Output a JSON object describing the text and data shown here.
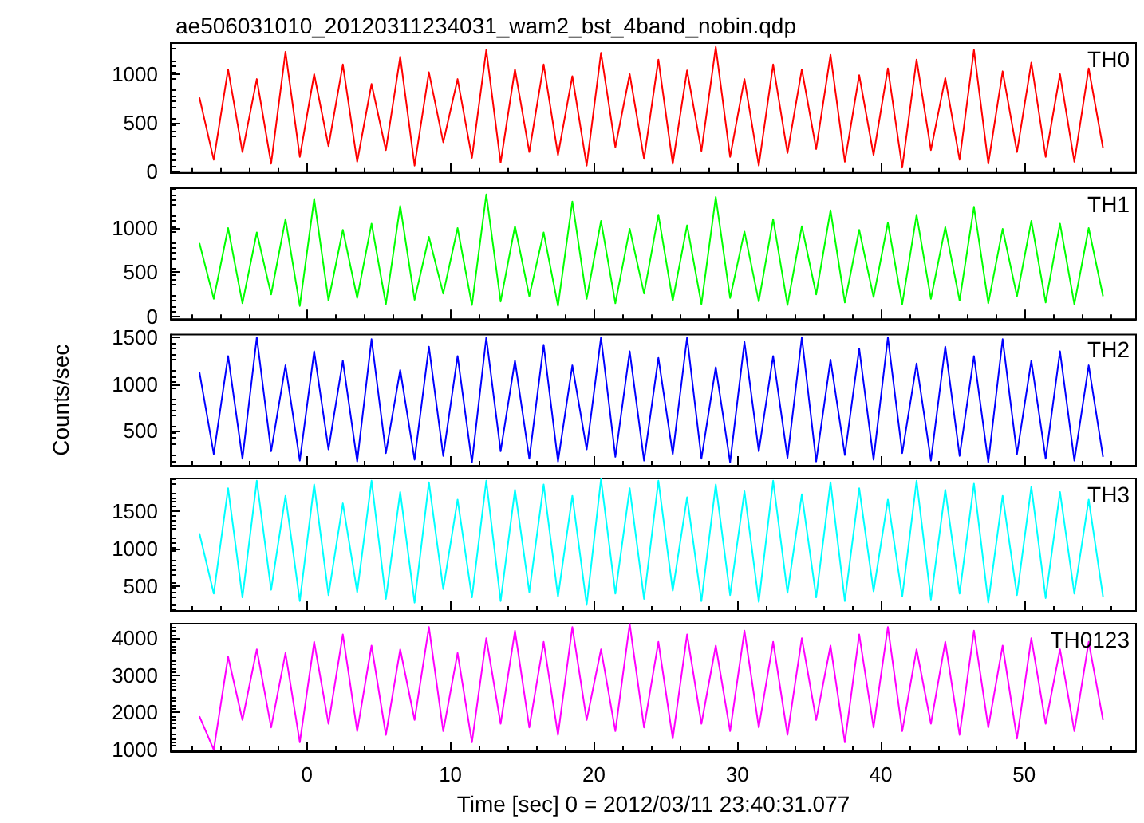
{
  "chart_data": [
    {
      "type": "line",
      "title": "ae506031010_20120311234031_wam2_bst_4band_nobin.qdp",
      "annotations": [
        "TH0"
      ],
      "marker": "none",
      "grid": false,
      "tick_labels": "y",
      "x": [
        -7.5,
        -6.5,
        -5.5,
        -4.5,
        -3.5,
        -2.5,
        -1.5,
        -0.5,
        0.5,
        1.5,
        2.5,
        3.5,
        4.5,
        5.5,
        6.5,
        7.5,
        8.5,
        9.5,
        10.5,
        11.5,
        12.5,
        13.5,
        14.5,
        15.5,
        16.5,
        17.5,
        18.5,
        19.5,
        20.5,
        21.5,
        22.5,
        23.5,
        24.5,
        25.5,
        26.5,
        27.5,
        28.5,
        29.5,
        30.5,
        31.5,
        32.5,
        33.5,
        34.5,
        35.5,
        36.5,
        37.5,
        38.5,
        39.5,
        40.5,
        41.5,
        42.5,
        43.5,
        44.5,
        45.5,
        46.5,
        47.5,
        48.5,
        49.5,
        50.5,
        51.5,
        52.5,
        53.5,
        54.5,
        55.5
      ],
      "series": [
        {
          "color": "#ff0000",
          "values": [
            760,
            120,
            1050,
            200,
            950,
            80,
            1230,
            150,
            1000,
            260,
            1100,
            100,
            900,
            220,
            1180,
            60,
            1020,
            300,
            950,
            140,
            1250,
            90,
            1050,
            200,
            1100,
            170,
            980,
            60,
            1220,
            250,
            1000,
            130,
            1150,
            80,
            1040,
            210,
            1280,
            150,
            950,
            60,
            1100,
            190,
            1050,
            230,
            1200,
            100,
            990,
            170,
            1060,
            40,
            1150,
            220,
            960,
            120,
            1250,
            80,
            1030,
            200,
            1120,
            150,
            1000,
            100,
            1060,
            240
          ]
        }
      ],
      "xlim": [
        -9.5,
        57.8
      ],
      "xticks": [
        0,
        10,
        20,
        30,
        40,
        50
      ],
      "ylim": [
        -15,
        1320
      ],
      "yticks": [
        0,
        500,
        1000
      ]
    },
    {
      "type": "line",
      "annotations": [
        "TH1"
      ],
      "marker": "none",
      "grid": false,
      "tick_labels": "y",
      "x": [
        -7.5,
        -6.5,
        -5.5,
        -4.5,
        -3.5,
        -2.5,
        -1.5,
        -0.5,
        0.5,
        1.5,
        2.5,
        3.5,
        4.5,
        5.5,
        6.5,
        7.5,
        8.5,
        9.5,
        10.5,
        11.5,
        12.5,
        13.5,
        14.5,
        15.5,
        16.5,
        17.5,
        18.5,
        19.5,
        20.5,
        21.5,
        22.5,
        23.5,
        24.5,
        25.5,
        26.5,
        27.5,
        28.5,
        29.5,
        30.5,
        31.5,
        32.5,
        33.5,
        34.5,
        35.5,
        36.5,
        37.5,
        38.5,
        39.5,
        40.5,
        41.5,
        42.5,
        43.5,
        44.5,
        45.5,
        46.5,
        47.5,
        48.5,
        49.5,
        50.5,
        51.5,
        52.5,
        53.5,
        54.5,
        55.5
      ],
      "series": [
        {
          "color": "#00ff00",
          "values": [
            830,
            200,
            1000,
            150,
            950,
            250,
            1100,
            120,
            1330,
            180,
            980,
            210,
            1050,
            140,
            1250,
            190,
            900,
            260,
            1000,
            130,
            1380,
            170,
            1020,
            230,
            950,
            120,
            1300,
            200,
            1080,
            150,
            990,
            260,
            1150,
            180,
            1030,
            140,
            1350,
            210,
            960,
            170,
            1100,
            130,
            1020,
            250,
            1200,
            160,
            980,
            220,
            1060,
            140,
            1150,
            200,
            1010,
            180,
            1240,
            150,
            990,
            230,
            1080,
            160,
            1050,
            140,
            1000,
            230
          ]
        }
      ],
      "xlim": [
        -9.5,
        57.8
      ],
      "xticks": [
        0,
        10,
        20,
        30,
        40,
        50
      ],
      "ylim": [
        -30,
        1450
      ],
      "yticks": [
        0,
        500,
        1000
      ]
    },
    {
      "type": "line",
      "ylabel": "Counts/sec",
      "annotations": [
        "TH2"
      ],
      "marker": "none",
      "grid": false,
      "tick_labels": "y",
      "x": [
        -7.5,
        -6.5,
        -5.5,
        -4.5,
        -3.5,
        -2.5,
        -1.5,
        -0.5,
        0.5,
        1.5,
        2.5,
        3.5,
        4.5,
        5.5,
        6.5,
        7.5,
        8.5,
        9.5,
        10.5,
        11.5,
        12.5,
        13.5,
        14.5,
        15.5,
        16.5,
        17.5,
        18.5,
        19.5,
        20.5,
        21.5,
        22.5,
        23.5,
        24.5,
        25.5,
        26.5,
        27.5,
        28.5,
        29.5,
        30.5,
        31.5,
        32.5,
        33.5,
        34.5,
        35.5,
        36.5,
        37.5,
        38.5,
        39.5,
        40.5,
        41.5,
        42.5,
        43.5,
        44.5,
        45.5,
        46.5,
        47.5,
        48.5,
        49.5,
        50.5,
        51.5,
        52.5,
        53.5,
        54.5,
        55.5
      ],
      "series": [
        {
          "color": "#0000ff",
          "values": [
            1130,
            250,
            1300,
            200,
            1500,
            280,
            1200,
            180,
            1350,
            300,
            1250,
            170,
            1480,
            260,
            1150,
            190,
            1400,
            230,
            1300,
            160,
            1500,
            280,
            1250,
            200,
            1420,
            170,
            1200,
            300,
            1500,
            220,
            1350,
            180,
            1280,
            250,
            1500,
            200,
            1180,
            160,
            1450,
            280,
            1300,
            210,
            1500,
            170,
            1260,
            240,
            1380,
            190,
            1500,
            260,
            1220,
            180,
            1400,
            230,
            1300,
            160,
            1480,
            250,
            1250,
            200,
            1350,
            180,
            1200,
            220
          ]
        }
      ],
      "xlim": [
        -9.5,
        57.8
      ],
      "xticks": [
        0,
        10,
        20,
        30,
        40,
        50
      ],
      "ylim": [
        125,
        1530
      ],
      "yticks": [
        500,
        1000,
        1500
      ]
    },
    {
      "type": "line",
      "annotations": [
        "TH3"
      ],
      "marker": "none",
      "grid": false,
      "tick_labels": "y",
      "x": [
        -7.5,
        -6.5,
        -5.5,
        -4.5,
        -3.5,
        -2.5,
        -1.5,
        -0.5,
        0.5,
        1.5,
        2.5,
        3.5,
        4.5,
        5.5,
        6.5,
        7.5,
        8.5,
        9.5,
        10.5,
        11.5,
        12.5,
        13.5,
        14.5,
        15.5,
        16.5,
        17.5,
        18.5,
        19.5,
        20.5,
        21.5,
        22.5,
        23.5,
        24.5,
        25.5,
        26.5,
        27.5,
        28.5,
        29.5,
        30.5,
        31.5,
        32.5,
        33.5,
        34.5,
        35.5,
        36.5,
        37.5,
        38.5,
        39.5,
        40.5,
        41.5,
        42.5,
        43.5,
        44.5,
        45.5,
        46.5,
        47.5,
        48.5,
        49.5,
        50.5,
        51.5,
        52.5,
        53.5,
        54.5,
        55.5
      ],
      "series": [
        {
          "color": "#00ffff",
          "values": [
            1200,
            400,
            1800,
            350,
            1900,
            450,
            1700,
            300,
            1850,
            380,
            1600,
            420,
            1900,
            330,
            1750,
            280,
            1880,
            460,
            1650,
            350,
            1900,
            300,
            1780,
            420,
            1850,
            360,
            1700,
            250,
            1920,
            400,
            1800,
            330,
            1900,
            440,
            1680,
            300,
            1850,
            380,
            1760,
            290,
            1900,
            410,
            1720,
            350,
            1880,
            300,
            1800,
            430,
            1650,
            360,
            1900,
            320,
            1780,
            400,
            1860,
            280,
            1700,
            380,
            1820,
            340,
            1750,
            400,
            1650,
            360
          ]
        }
      ],
      "xlim": [
        -9.5,
        57.8
      ],
      "xticks": [
        0,
        10,
        20,
        30,
        40,
        50
      ],
      "ylim": [
        170,
        1930
      ],
      "yticks": [
        500,
        1000,
        1500
      ]
    },
    {
      "type": "line",
      "xlabel": "Time [sec] 0 = 2012/03/11 23:40:31.077",
      "annotations": [
        "TH0123"
      ],
      "marker": "none",
      "grid": false,
      "x": [
        -7.5,
        -6.5,
        -5.5,
        -4.5,
        -3.5,
        -2.5,
        -1.5,
        -0.5,
        0.5,
        1.5,
        2.5,
        3.5,
        4.5,
        5.5,
        6.5,
        7.5,
        8.5,
        9.5,
        10.5,
        11.5,
        12.5,
        13.5,
        14.5,
        15.5,
        16.5,
        17.5,
        18.5,
        19.5,
        20.5,
        21.5,
        22.5,
        23.5,
        24.5,
        25.5,
        26.5,
        27.5,
        28.5,
        29.5,
        30.5,
        31.5,
        32.5,
        33.5,
        34.5,
        35.5,
        36.5,
        37.5,
        38.5,
        39.5,
        40.5,
        41.5,
        42.5,
        43.5,
        44.5,
        45.5,
        46.5,
        47.5,
        48.5,
        49.5,
        50.5,
        51.5,
        52.5,
        53.5,
        54.5,
        55.5
      ],
      "series": [
        {
          "color": "#ff00ff",
          "values": [
            1900,
            1000,
            3500,
            1800,
            3700,
            1600,
            3600,
            1200,
            3900,
            1700,
            4100,
            1500,
            3800,
            1400,
            3700,
            1800,
            4300,
            1500,
            3600,
            1200,
            4000,
            1700,
            4200,
            1600,
            3900,
            1400,
            4300,
            1800,
            3700,
            1500,
            4380,
            1600,
            3900,
            1300,
            4100,
            1700,
            3800,
            1500,
            4200,
            1600,
            3900,
            1400,
            4000,
            1800,
            3800,
            1200,
            4100,
            1600,
            4300,
            1500,
            3700,
            1700,
            3900,
            1400,
            4200,
            1600,
            3800,
            1300,
            4000,
            1700,
            3700,
            1500,
            3900,
            1800
          ]
        }
      ],
      "xlim": [
        -9.5,
        57.8
      ],
      "xticks": [
        0,
        10,
        20,
        30,
        40,
        50
      ],
      "ylim": [
        960,
        4390
      ],
      "yticks": [
        1000,
        2000,
        3000,
        4000
      ]
    }
  ]
}
